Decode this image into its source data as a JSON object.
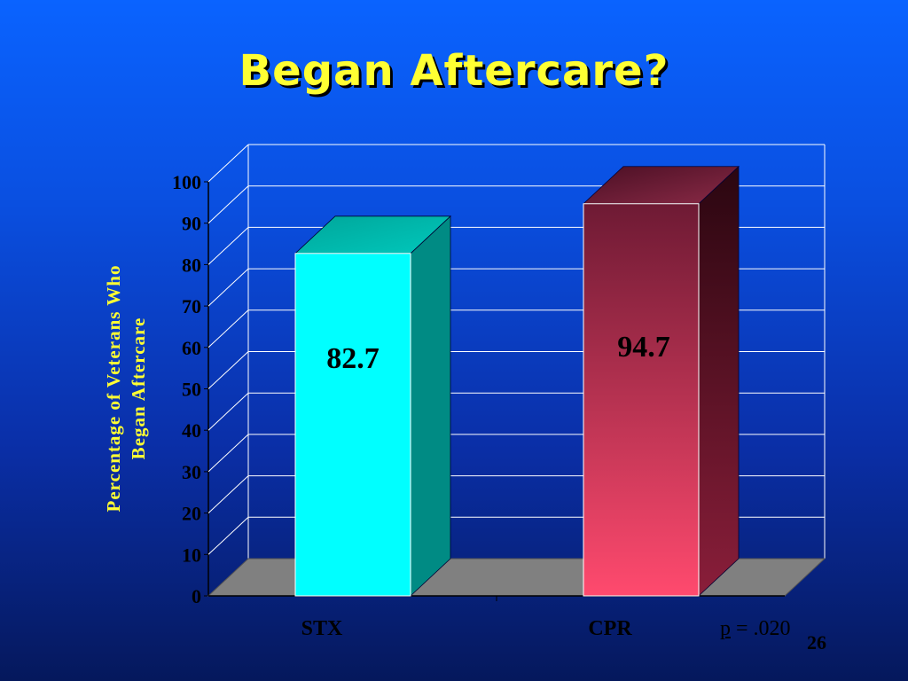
{
  "slide": {
    "title": "Began Aftercare?",
    "y_axis_label_line1": "Percentage of Veterans Who",
    "y_axis_label_line2": "Began Aftercare",
    "p_label": "p",
    "p_value_text": " =  .020",
    "slide_number": "26"
  },
  "chart_data": {
    "type": "bar",
    "categories": [
      "STX",
      "CPR"
    ],
    "values": [
      82.7,
      94.7
    ],
    "data_labels": [
      "82.7",
      "94.7"
    ],
    "ylim": [
      0,
      100
    ],
    "yticks": [
      "0",
      "10",
      "20",
      "30",
      "40",
      "50",
      "60",
      "70",
      "80",
      "90",
      "100"
    ],
    "grid": true,
    "colors": {
      "STX": "#00ffff",
      "CPR": "#ff4a6e",
      "STX_side": "#008b84",
      "CPR_side": "#6a1528",
      "floor": "#808080",
      "gridline": "#ffffff"
    }
  }
}
